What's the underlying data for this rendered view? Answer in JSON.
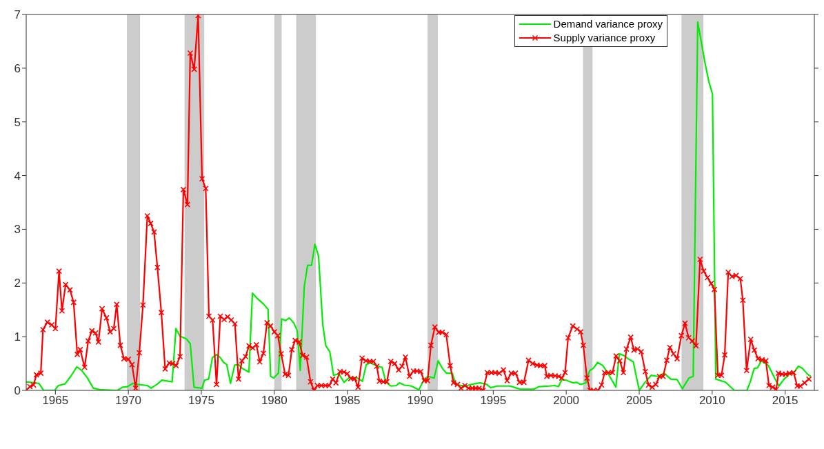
{
  "chart_data": {
    "type": "line",
    "xlim": [
      1963,
      2017
    ],
    "xticks": [
      1965,
      1970,
      1975,
      1980,
      1985,
      1990,
      1995,
      2000,
      2005,
      2010,
      2015
    ],
    "ylim": [
      0,
      7
    ],
    "yticks": [
      0,
      1,
      2,
      3,
      4,
      5,
      6,
      7
    ],
    "grid": false,
    "legend": "top right",
    "line_style": "solid",
    "bands": [
      {
        "axis": "x",
        "from": 1969.9,
        "to": 1970.8,
        "color": "#cccccc"
      },
      {
        "axis": "x",
        "from": 1973.85,
        "to": 1975.2,
        "color": "#cccccc"
      },
      {
        "axis": "x",
        "from": 1980.0,
        "to": 1980.5,
        "color": "#cccccc"
      },
      {
        "axis": "x",
        "from": 1981.5,
        "to": 1982.85,
        "color": "#cccccc"
      },
      {
        "axis": "x",
        "from": 1990.5,
        "to": 1991.2,
        "color": "#cccccc"
      },
      {
        "axis": "x",
        "from": 2001.15,
        "to": 2001.8,
        "color": "#cccccc"
      },
      {
        "axis": "x",
        "from": 2007.9,
        "to": 2009.4,
        "color": "#cccccc"
      }
    ],
    "series": [
      {
        "name": "Demand variance proxy",
        "color": "#00ee00",
        "marker": "none",
        "x": [
          1963.0,
          1963.87,
          1964.2,
          1964.95,
          1965.2,
          1965.66,
          1966.05,
          1966.47,
          1966.8,
          1967.2,
          1967.6,
          1968.15,
          1969.25,
          1969.6,
          1969.95,
          1970.3,
          1970.67,
          1971.3,
          1971.56,
          1972.0,
          1972.3,
          1973.0,
          1973.26,
          1973.53,
          1973.97,
          1974.24,
          1974.5,
          1975.04,
          1975.22,
          1975.5,
          1975.76,
          1976.03,
          1976.3,
          1976.53,
          1976.74,
          1977.0,
          1977.28,
          1977.55,
          1977.8,
          1978.26,
          1978.5,
          1978.8,
          1979.25,
          1979.57,
          1979.75,
          1979.96,
          1980.28,
          1980.5,
          1980.76,
          1981.03,
          1981.35,
          1981.57,
          1981.78,
          1982.05,
          1982.28,
          1982.55,
          1982.78,
          1983.03,
          1983.32,
          1983.53,
          1983.8,
          1984.06,
          1984.42,
          1984.78,
          1985.14,
          1985.68,
          1986.04,
          1986.3,
          1986.57,
          1987.1,
          1987.38,
          1987.65,
          1988.0,
          1988.36,
          1988.57,
          1988.9,
          1989.4,
          1989.9,
          1990.27,
          1990.53,
          1990.95,
          1991.22,
          1991.52,
          1991.79,
          1992.2,
          1992.41,
          1992.77,
          1993.22,
          1993.66,
          1994.11,
          1994.56,
          1994.82,
          1995.27,
          1996.16,
          1996.52,
          1996.88,
          1997.77,
          1998.13,
          1998.85,
          1999.2,
          1999.47,
          1999.7,
          2000.0,
          2000.45,
          2000.72,
          2000.99,
          2001.34,
          2001.61,
          2001.85,
          2002.15,
          2002.51,
          2002.78,
          2003.13,
          2003.4,
          2003.64,
          2003.94,
          2004.24,
          2004.6,
          2004.75,
          2005.01,
          2005.37,
          2005.82,
          2006.26,
          2006.71,
          2007.16,
          2007.6,
          2007.96,
          2008.14,
          2008.41,
          2008.7,
          2009.01,
          2009.48,
          2009.77,
          2010.02,
          2010.25,
          2010.93,
          2011.51,
          2012.38,
          2012.6,
          2012.88,
          2013.11,
          2013.36,
          2013.86,
          2014.22,
          2014.57,
          2014.93,
          2015.29,
          2015.65,
          2015.91,
          2016.18,
          2016.54,
          2016.75
        ],
        "values": [
          0.16,
          0.13,
          0,
          0,
          0.09,
          0.12,
          0.26,
          0.44,
          0.37,
          0.23,
          0.04,
          0.01,
          0,
          0.06,
          0.07,
          0.13,
          0.11,
          0.09,
          0.04,
          0.12,
          0.19,
          0.16,
          1.15,
          1.01,
          0.96,
          0.87,
          0.06,
          0.04,
          0.19,
          0.21,
          0.61,
          0.67,
          0.61,
          0.52,
          0.48,
          0.13,
          0.47,
          0.48,
          0.41,
          0.34,
          1.81,
          1.72,
          1.61,
          1.51,
          0.26,
          0.23,
          0.32,
          1.33,
          1.3,
          1.35,
          1.25,
          1.11,
          0.37,
          1.93,
          2.33,
          2.33,
          2.72,
          2.5,
          1.22,
          0.83,
          0.72,
          0.28,
          0.31,
          0.15,
          0.24,
          0.23,
          0.17,
          0.48,
          0.51,
          0.45,
          0.43,
          0.15,
          0.08,
          0.09,
          0.14,
          0.1,
          0.08,
          0.01,
          0.21,
          0.26,
          0.23,
          0.55,
          0.41,
          0.32,
          0.32,
          0.12,
          0.09,
          0.09,
          0.12,
          0.14,
          0.11,
          0.05,
          0.08,
          0.08,
          0.05,
          0.02,
          0.02,
          0.07,
          0.08,
          0.09,
          0.07,
          0.2,
          0.19,
          0.14,
          0.15,
          0.11,
          0.14,
          0.37,
          0.41,
          0.52,
          0.46,
          0.35,
          0.19,
          0.06,
          0.68,
          0.65,
          0.59,
          0.53,
          0.32,
          0,
          0.14,
          0.28,
          0.26,
          0.32,
          0.21,
          0.2,
          0.03,
          0.11,
          0.23,
          0.26,
          6.86,
          6.14,
          5.75,
          5.52,
          0.21,
          0.15,
          0,
          0,
          0.15,
          0.41,
          0.42,
          0.55,
          0.46,
          0.26,
          0.08,
          0.21,
          0.3,
          0.35,
          0.45,
          0.41,
          0.3,
          0.26
        ]
      },
      {
        "name": "Supply variance proxy",
        "color": "#ff0000",
        "marker": "cross",
        "x": [
          1963.0,
          1963.25,
          1963.5,
          1963.7,
          1964.0,
          1964.15,
          1964.45,
          1964.75,
          1965.0,
          1965.25,
          1965.45,
          1965.7,
          1966.0,
          1966.25,
          1966.5,
          1966.7,
          1967.0,
          1967.25,
          1967.5,
          1967.75,
          1967.95,
          1968.2,
          1968.5,
          1968.75,
          1969.0,
          1969.2,
          1969.45,
          1969.7,
          1970.0,
          1970.25,
          1970.5,
          1970.75,
          1971.0,
          1971.3,
          1971.53,
          1971.76,
          1971.99,
          1972.26,
          1972.52,
          1972.8,
          1973.04,
          1973.27,
          1973.54,
          1973.77,
          1974.05,
          1974.24,
          1974.51,
          1974.78,
          1975.05,
          1975.3,
          1975.52,
          1975.77,
          1976.04,
          1976.3,
          1976.56,
          1976.8,
          1977.05,
          1977.3,
          1977.55,
          1977.78,
          1978.03,
          1978.27,
          1978.52,
          1978.77,
          1979.0,
          1979.25,
          1979.5,
          1979.74,
          1980.0,
          1980.24,
          1980.47,
          1980.74,
          1980.97,
          1981.2,
          1981.43,
          1981.71,
          1981.94,
          1982.21,
          1982.48,
          1982.72,
          1982.95,
          1983.22,
          1983.5,
          1983.76,
          1984.0,
          1984.22,
          1984.5,
          1984.77,
          1985.0,
          1985.24,
          1985.5,
          1985.74,
          1986.01,
          1986.28,
          1986.55,
          1986.79,
          1987.02,
          1987.2,
          1987.48,
          1987.71,
          1987.98,
          1988.25,
          1988.52,
          1988.75,
          1988.98,
          1989.26,
          1989.53,
          1989.77,
          1990.03,
          1990.27,
          1990.5,
          1990.73,
          1991.0,
          1991.27,
          1991.5,
          1991.78,
          1992.05,
          1992.28,
          1992.55,
          1992.79,
          1993.06,
          1993.3,
          1993.57,
          1993.8,
          1994.03,
          1994.3,
          1994.59,
          1994.88,
          1995.13,
          1995.41,
          1995.7,
          1995.95,
          1996.23,
          1996.52,
          1996.8,
          1997.1,
          1997.42,
          1997.7,
          1998.0,
          1998.24,
          1998.53,
          1998.67,
          1998.95,
          1999.24,
          1999.49,
          1999.7,
          1999.92,
          2000.13,
          2000.45,
          2000.74,
          2000.99,
          2001.17,
          2001.42,
          2001.63,
          2001.88,
          2002.17,
          2002.42,
          2002.63,
          2002.88,
          2003.17,
          2003.42,
          2003.67,
          2003.92,
          2004.13,
          2004.42,
          2004.64,
          2004.89,
          2005.14,
          2005.42,
          2005.64,
          2005.89,
          2006.14,
          2006.39,
          2006.64,
          2006.89,
          2007.1,
          2007.35,
          2007.6,
          2007.89,
          2008.14,
          2008.39,
          2008.64,
          2008.89,
          2009.17,
          2009.42,
          2009.68,
          2009.93,
          2010.15,
          2010.39,
          2010.64,
          2010.86,
          2011.1,
          2011.36,
          2011.64,
          2011.93,
          2012.1,
          2012.36,
          2012.64,
          2012.89,
          2013.14,
          2013.42,
          2013.68,
          2013.89,
          2014.14,
          2014.39,
          2014.54,
          2014.79,
          2015.04,
          2015.29,
          2015.58,
          2015.83,
          2016.04,
          2016.33,
          2016.63
        ],
        "values": [
          0,
          0.07,
          0.1,
          0.29,
          0.32,
          1.13,
          1.27,
          1.22,
          1.15,
          2.22,
          1.48,
          1.97,
          1.87,
          1.64,
          0.67,
          0.76,
          0.43,
          0.92,
          1.11,
          1.07,
          0.9,
          1.52,
          1.35,
          1.09,
          1.15,
          1.6,
          0.84,
          0.59,
          0.58,
          0.48,
          0.04,
          0.7,
          1.59,
          3.25,
          3.11,
          2.95,
          2.29,
          1.45,
          0.4,
          0.51,
          0.5,
          0.46,
          0.63,
          3.74,
          3.46,
          6.28,
          5.98,
          6.98,
          3.94,
          3.76,
          1.38,
          1.31,
          0.11,
          1.38,
          1.32,
          1.37,
          1.31,
          1.24,
          0.21,
          0.55,
          0.63,
          0.83,
          0.79,
          0.85,
          0.53,
          0.69,
          1.26,
          1.2,
          1.09,
          1.02,
          0.68,
          0.3,
          0.28,
          0.76,
          0.93,
          0.9,
          0.65,
          0.62,
          0.16,
          0,
          0.09,
          0.09,
          0.09,
          0.09,
          0.21,
          0.14,
          0.35,
          0.34,
          0.31,
          0.22,
          0.22,
          0.06,
          0.6,
          0.55,
          0.54,
          0.54,
          0.45,
          0.17,
          0.16,
          0.16,
          0.54,
          0.5,
          0.38,
          0.45,
          0.62,
          0.26,
          0.36,
          0.36,
          0.35,
          0.18,
          0.18,
          0.84,
          1.18,
          1.08,
          1.08,
          1.04,
          0.46,
          0.14,
          0.11,
          0.04,
          0.09,
          0.04,
          0.04,
          0.04,
          0.04,
          0,
          0.33,
          0.33,
          0.33,
          0.32,
          0.38,
          0.18,
          0.32,
          0.32,
          0.15,
          0.15,
          0.56,
          0.5,
          0.47,
          0.46,
          0.46,
          0.26,
          0.28,
          0.27,
          0.26,
          0.23,
          0.33,
          0.98,
          1.2,
          1.14,
          1.09,
          0.84,
          0.23,
          0,
          0,
          0,
          0.1,
          0.33,
          0.33,
          0.33,
          0.64,
          0.55,
          0.33,
          0.77,
          0.99,
          0.75,
          0.77,
          0.72,
          0.35,
          0.1,
          0.06,
          0.11,
          0.26,
          0.26,
          0.56,
          0.8,
          0.68,
          0.59,
          1.02,
          1.25,
          0.98,
          0.92,
          0.83,
          2.44,
          2.22,
          2.1,
          1.99,
          1.88,
          0.28,
          0.28,
          0.66,
          2.2,
          2.12,
          2.14,
          2.08,
          1.68,
          0.37,
          0.95,
          0.75,
          0.59,
          0.57,
          0.55,
          0.09,
          0.06,
          0.02,
          0.32,
          0.3,
          0.3,
          0.32,
          0.33,
          0.08,
          0.08,
          0.14,
          0.21
        ]
      }
    ]
  }
}
